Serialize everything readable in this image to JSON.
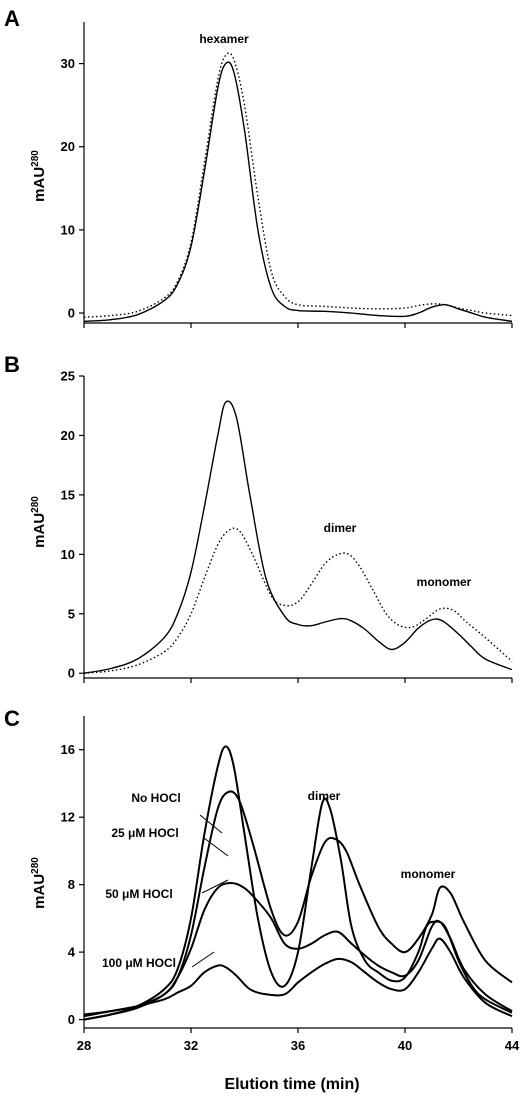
{
  "chart_data": [
    {
      "panel": "A",
      "type": "line",
      "title": "",
      "ylabel": "mAU",
      "ylabel_sup": "280",
      "xlim": [
        28,
        44
      ],
      "ylim": [
        -1.2,
        35
      ],
      "yticks": [
        0,
        10,
        20,
        30
      ],
      "ytick_labels": [
        "0",
        "10",
        "20",
        "30"
      ],
      "series": [
        {
          "style": "solid",
          "x": [
            28,
            29,
            30,
            31,
            31.5,
            32,
            32.5,
            33,
            33.3,
            33.6,
            34,
            34.5,
            35,
            35.5,
            36,
            37,
            38,
            39,
            40,
            40.5,
            41,
            41.5,
            42,
            42.5,
            43,
            44
          ],
          "y": [
            -1,
            -0.8,
            -0.2,
            1.5,
            3.5,
            8,
            17,
            27,
            30,
            29,
            22,
            10,
            3,
            0.8,
            0.3,
            0.2,
            0,
            -0.3,
            -0.4,
            0,
            0.7,
            1,
            0.5,
            0,
            -0.5,
            -1
          ]
        },
        {
          "style": "dotted",
          "x": [
            28,
            29,
            30,
            31,
            31.5,
            32,
            32.5,
            33,
            33.3,
            33.6,
            34,
            34.5,
            35,
            35.5,
            36,
            37,
            38,
            39,
            40,
            40.5,
            41,
            41.5,
            42,
            42.5,
            43,
            44
          ],
          "y": [
            -0.5,
            -0.3,
            0.2,
            1.8,
            3.8,
            8.5,
            18,
            28,
            31,
            30.5,
            25,
            14,
            5,
            2,
            1,
            0.8,
            0.6,
            0.5,
            0.6,
            0.9,
            1.1,
            1,
            0.6,
            0.3,
            0,
            -0.3
          ]
        }
      ],
      "annotations": [
        {
          "text": "hexamer"
        }
      ]
    },
    {
      "panel": "B",
      "type": "line",
      "title": "",
      "ylabel": "mAU",
      "ylabel_sup": "280",
      "xlim": [
        28,
        44
      ],
      "ylim": [
        -0.4,
        25
      ],
      "yticks": [
        0,
        5,
        10,
        15,
        20,
        25
      ],
      "ytick_labels": [
        "0",
        "5",
        "10",
        "15",
        "20",
        "25"
      ],
      "series": [
        {
          "style": "solid",
          "x": [
            28,
            29,
            30,
            31,
            31.5,
            32,
            32.5,
            33,
            33.3,
            33.7,
            34.2,
            34.8,
            35.5,
            36,
            36.5,
            37,
            37.6,
            38,
            38.5,
            39,
            39.5,
            40,
            40.5,
            41,
            41.4,
            42,
            42.5,
            43,
            44
          ],
          "y": [
            0,
            0.4,
            1.2,
            3,
            5,
            8.5,
            14,
            20,
            22.8,
            21.5,
            15,
            8,
            4.8,
            4.1,
            4,
            4.3,
            4.6,
            4.4,
            3.7,
            2.7,
            2,
            2.6,
            3.8,
            4.5,
            4.4,
            3.3,
            2.2,
            1.2,
            0.3
          ]
        },
        {
          "style": "dotted",
          "x": [
            28,
            29,
            30,
            31,
            31.5,
            32,
            32.5,
            33,
            33.4,
            33.8,
            34.3,
            35,
            35.5,
            36,
            36.5,
            37,
            37.5,
            37.9,
            38.3,
            38.8,
            39.3,
            39.8,
            40.3,
            40.8,
            41.3,
            41.8,
            42.3,
            43,
            44
          ],
          "y": [
            0,
            0.2,
            0.7,
            1.8,
            3,
            5,
            8,
            10.8,
            12,
            12,
            10,
            6.5,
            5.7,
            6,
            7.5,
            9.2,
            10,
            10,
            9,
            7,
            5,
            4,
            3.9,
            4.6,
            5.4,
            5.3,
            4.3,
            3,
            1
          ]
        }
      ],
      "annotations": [
        {
          "text": "dimer"
        },
        {
          "text": "monomer"
        }
      ]
    },
    {
      "panel": "C",
      "type": "line",
      "title": "",
      "xlabel": "Elution time (min)",
      "ylabel": "mAU",
      "ylabel_sup": "280",
      "xlim": [
        28,
        44
      ],
      "ylim": [
        -0.5,
        18
      ],
      "xticks": [
        28,
        32,
        36,
        40,
        44
      ],
      "xtick_labels": [
        "28",
        "32",
        "36",
        "40",
        "44"
      ],
      "yticks": [
        0,
        4,
        8,
        12,
        16
      ],
      "ytick_labels": [
        "0",
        "4",
        "8",
        "12",
        "16"
      ],
      "series": [
        {
          "name": "No HOCl",
          "x": [
            28,
            29,
            30,
            31,
            31.5,
            32,
            32.5,
            33,
            33.3,
            33.6,
            34,
            34.5,
            35,
            35.5,
            36,
            36.5,
            36.9,
            37.2,
            37.6,
            38,
            38.5,
            39,
            39.5,
            40,
            40.5,
            40.8,
            41.1,
            41.5,
            42,
            42.5,
            43,
            44
          ],
          "y": [
            0,
            0.3,
            0.8,
            1.8,
            3,
            6,
            11,
            15,
            16.2,
            15,
            11,
            6,
            2.8,
            2,
            4,
            9,
            12.8,
            12.5,
            9.5,
            5.5,
            3.5,
            2.8,
            2.3,
            2.5,
            4,
            5.5,
            5.8,
            5.5,
            3.5,
            2,
            1.2,
            0.4
          ]
        },
        {
          "name": "25 μM HOCl",
          "x": [
            28,
            29,
            30,
            31,
            31.5,
            32,
            32.5,
            33,
            33.4,
            33.8,
            34.3,
            35,
            35.5,
            36,
            36.5,
            37,
            37.4,
            37.8,
            38.3,
            39,
            39.5,
            40,
            40.5,
            41,
            41.3,
            41.7,
            42.2,
            43,
            44
          ],
          "y": [
            0,
            0.3,
            0.7,
            1.5,
            2.5,
            5,
            9,
            12.5,
            13.5,
            13,
            10.5,
            6.5,
            5,
            5.8,
            8.5,
            10.5,
            10.7,
            10,
            8,
            5.5,
            4.5,
            4,
            4.8,
            6.2,
            7.8,
            7.5,
            5.8,
            3.5,
            2.2
          ]
        },
        {
          "name": "50 μM HOCl",
          "x": [
            28,
            29,
            30,
            31,
            31.5,
            32,
            32.5,
            33,
            33.5,
            34,
            34.5,
            35,
            35.5,
            36,
            36.5,
            37,
            37.5,
            38,
            38.5,
            39,
            39.5,
            40,
            40.5,
            41,
            41.3,
            41.7,
            42.2,
            43,
            44
          ],
          "y": [
            0.3,
            0.5,
            0.8,
            1.5,
            2.5,
            4.2,
            6.5,
            7.8,
            8.1,
            7.8,
            7,
            6,
            4.5,
            4.2,
            4.5,
            5,
            5.2,
            4.5,
            3.8,
            3.2,
            2.8,
            2.6,
            3.5,
            5.5,
            5.8,
            4.8,
            3,
            1.5,
            0.5
          ]
        },
        {
          "name": "100 μM HOCl",
          "x": [
            28,
            29,
            30,
            31,
            31.5,
            32,
            32.5,
            33,
            33.3,
            33.7,
            34.2,
            34.8,
            35.5,
            36,
            36.5,
            37,
            37.5,
            38,
            38.5,
            39,
            39.5,
            40,
            40.5,
            41,
            41.3,
            41.7,
            42.2,
            43,
            44
          ],
          "y": [
            0.2,
            0.5,
            0.8,
            1.2,
            1.6,
            2,
            2.8,
            3.2,
            3.1,
            2.6,
            1.8,
            1.5,
            1.5,
            2.2,
            2.8,
            3.3,
            3.6,
            3.4,
            2.8,
            2.2,
            1.8,
            1.8,
            2.8,
            4.2,
            4.8,
            4,
            2.5,
            1,
            0.2
          ]
        }
      ],
      "annotations": [
        {
          "text": "dimer"
        },
        {
          "text": "monomer"
        }
      ]
    }
  ]
}
